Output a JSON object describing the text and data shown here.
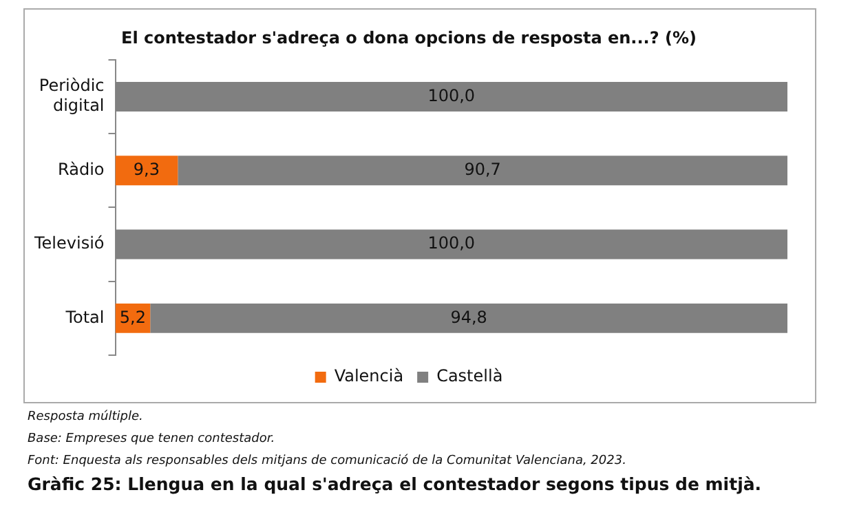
{
  "chart_data": {
    "type": "bar",
    "orientation": "horizontal",
    "stacked": true,
    "title": "El contestador s'adreça o dona opcions de resposta en...? (%)",
    "categories": [
      "Periòdic digital",
      "Ràdio",
      "Televisió",
      "Total"
    ],
    "series": [
      {
        "name": "Valencià",
        "color": "#f26b0f",
        "values": [
          null,
          9.3,
          null,
          5.2
        ],
        "value_labels": [
          null,
          "9,3",
          null,
          "5,2"
        ]
      },
      {
        "name": "Castellà",
        "color": "#808080",
        "values": [
          100,
          90.7,
          100,
          94.8
        ],
        "value_labels": [
          "100,0",
          "90,7",
          "100,0",
          "94,8"
        ]
      }
    ],
    "xlim": [
      0,
      100
    ],
    "tick_labels": "y",
    "grid": false,
    "legend": "bottom",
    "annotations": [
      "Resposta múltiple.",
      "Base: Empreses que tenen contestador.",
      "Font: Enquesta als responsables dels mitjans de comunicació de la Comunitat Valenciana, 2023.",
      "Gràfic 25: Llengua en la qual s'adreça el contestador segons tipus de mitjà."
    ]
  }
}
